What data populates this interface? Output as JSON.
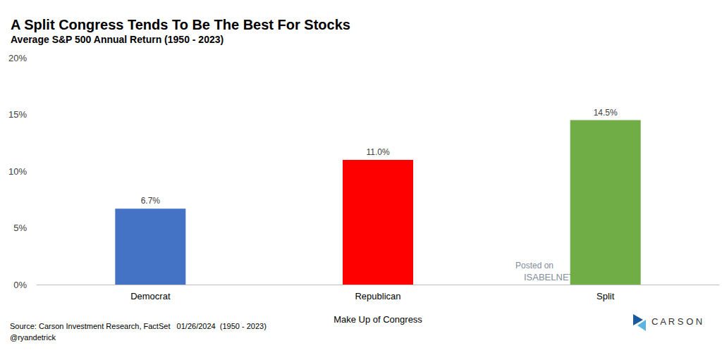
{
  "chart_data": {
    "type": "bar",
    "title": "A Split Congress Tends To Be The Best For Stocks",
    "subtitle": "Average S&P 500 Annual Return (1950 - 2023)",
    "xlabel": "Make Up of Congress",
    "categories": [
      "Democrat",
      "Republican",
      "Split"
    ],
    "values": [
      6.7,
      11.0,
      14.5
    ],
    "value_labels": [
      "6.7%",
      "11.0%",
      "14.5%"
    ],
    "colors": [
      "#4472c4",
      "#ff0000",
      "#70ad47"
    ],
    "ylim": [
      0,
      20
    ],
    "yticks": [
      {
        "value": 0,
        "label": "0%"
      },
      {
        "value": 5,
        "label": "5%"
      },
      {
        "value": 10,
        "label": "10%"
      },
      {
        "value": 15,
        "label": "15%"
      },
      {
        "value": 20,
        "label": "20%"
      }
    ],
    "grid": false,
    "data_labels": true,
    "annotations": [
      "Source: Carson Investment Research, FactSet   01/26/2024  (1950 - 2023)",
      "@ryandetrick",
      "Posted on",
      "ISABELNET.com",
      "CARSON"
    ]
  }
}
